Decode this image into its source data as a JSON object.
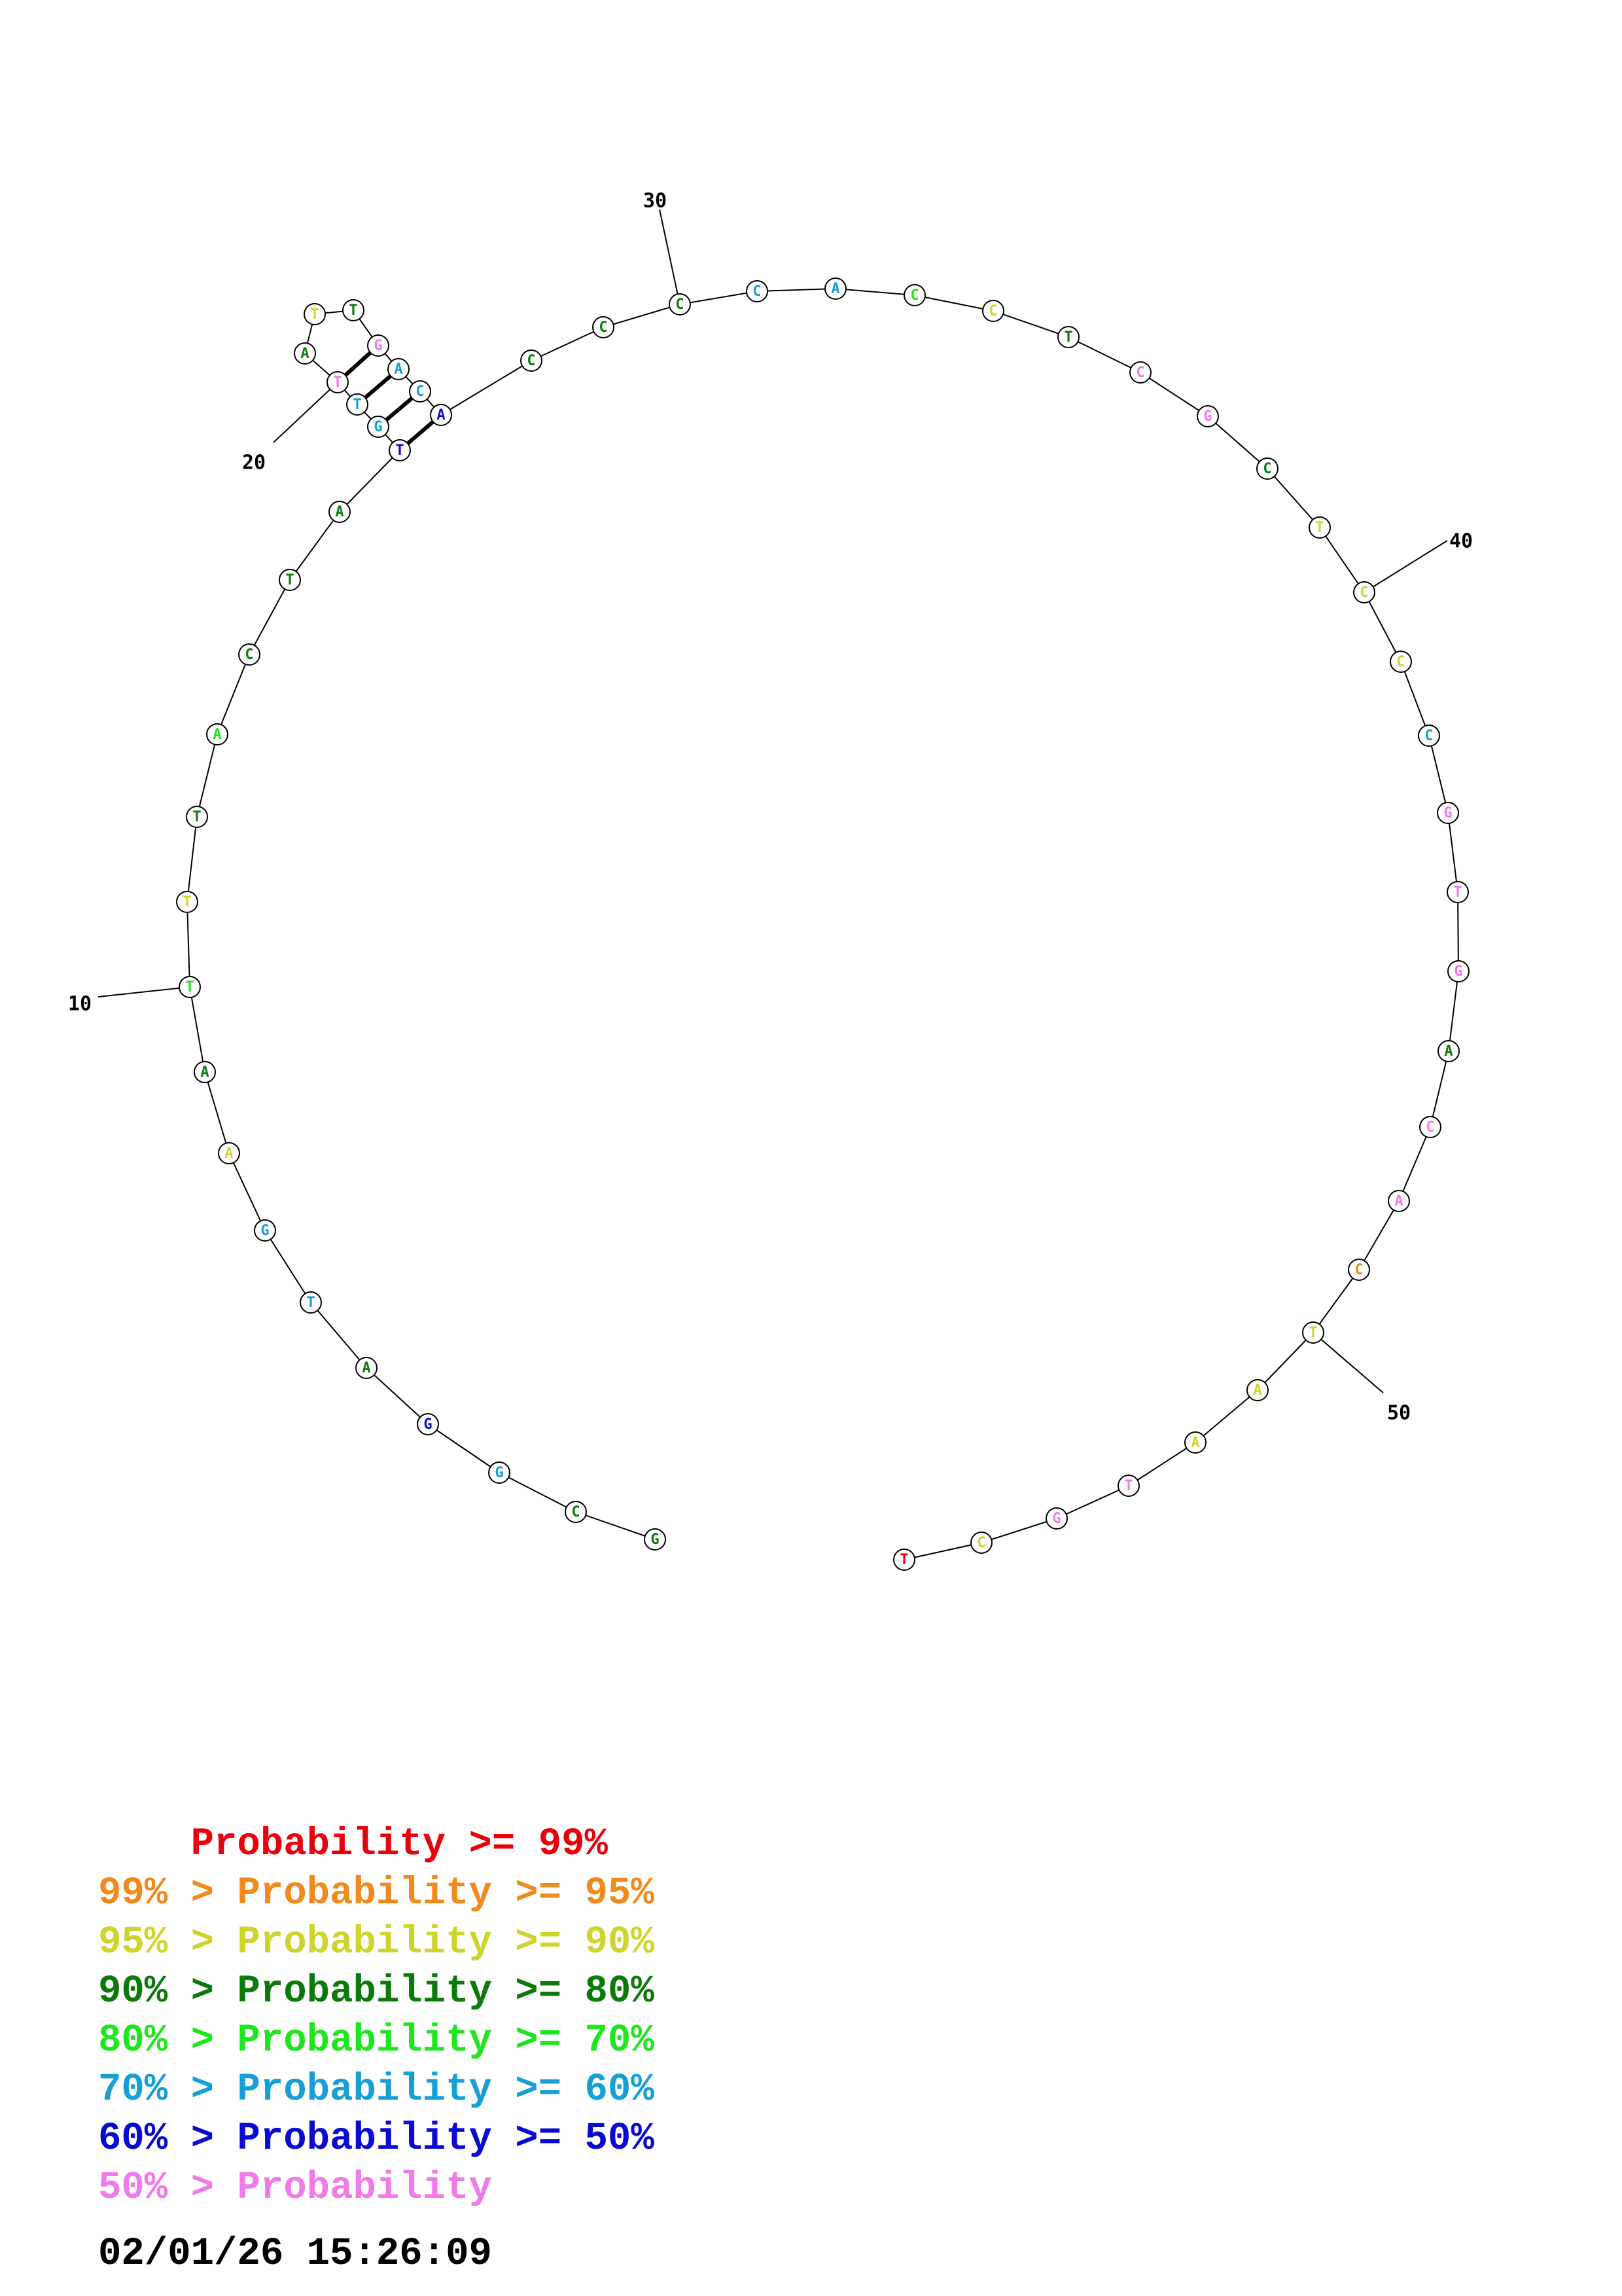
{
  "colors": {
    "red": "#e8000b",
    "orange": "#f08a1c",
    "yellow": "#cfd42c",
    "darkgreen": "#0b7a0b",
    "green": "#1ee61e",
    "cyan": "#169fd6",
    "blue": "#0a0ad2",
    "pink": "#f07ae8"
  },
  "sequence": [
    {
      "n": 1,
      "base": "G",
      "c": "darkgreen"
    },
    {
      "n": 2,
      "base": "C",
      "c": "darkgreen"
    },
    {
      "n": 3,
      "base": "G",
      "c": "cyan"
    },
    {
      "n": 4,
      "base": "G",
      "c": "blue"
    },
    {
      "n": 5,
      "base": "A",
      "c": "darkgreen"
    },
    {
      "n": 6,
      "base": "T",
      "c": "cyan"
    },
    {
      "n": 7,
      "base": "G",
      "c": "cyan"
    },
    {
      "n": 8,
      "base": "A",
      "c": "yellow"
    },
    {
      "n": 9,
      "base": "A",
      "c": "darkgreen"
    },
    {
      "n": 10,
      "base": "T",
      "c": "green"
    },
    {
      "n": 11,
      "base": "T",
      "c": "yellow"
    },
    {
      "n": 12,
      "base": "T",
      "c": "darkgreen"
    },
    {
      "n": 13,
      "base": "A",
      "c": "green"
    },
    {
      "n": 14,
      "base": "C",
      "c": "darkgreen"
    },
    {
      "n": 15,
      "base": "T",
      "c": "darkgreen"
    },
    {
      "n": 16,
      "base": "A",
      "c": "darkgreen"
    },
    {
      "n": 17,
      "base": "T",
      "c": "blue"
    },
    {
      "n": 18,
      "base": "G",
      "c": "cyan"
    },
    {
      "n": 19,
      "base": "T",
      "c": "cyan"
    },
    {
      "n": 20,
      "base": "T",
      "c": "pink"
    },
    {
      "n": 21,
      "base": "A",
      "c": "darkgreen"
    },
    {
      "n": 22,
      "base": "T",
      "c": "yellow"
    },
    {
      "n": 23,
      "base": "T",
      "c": "darkgreen"
    },
    {
      "n": 24,
      "base": "G",
      "c": "pink"
    },
    {
      "n": 25,
      "base": "A",
      "c": "cyan"
    },
    {
      "n": 26,
      "base": "C",
      "c": "cyan"
    },
    {
      "n": 27,
      "base": "A",
      "c": "blue"
    },
    {
      "n": 28,
      "base": "C",
      "c": "darkgreen"
    },
    {
      "n": 29,
      "base": "C",
      "c": "darkgreen"
    },
    {
      "n": 30,
      "base": "C",
      "c": "darkgreen"
    },
    {
      "n": 31,
      "base": "C",
      "c": "cyan"
    },
    {
      "n": 32,
      "base": "A",
      "c": "cyan"
    },
    {
      "n": 33,
      "base": "C",
      "c": "green"
    },
    {
      "n": 34,
      "base": "C",
      "c": "yellow"
    },
    {
      "n": 35,
      "base": "T",
      "c": "darkgreen"
    },
    {
      "n": 36,
      "base": "C",
      "c": "pink"
    },
    {
      "n": 37,
      "base": "G",
      "c": "pink"
    },
    {
      "n": 38,
      "base": "C",
      "c": "darkgreen"
    },
    {
      "n": 39,
      "base": "T",
      "c": "yellow"
    },
    {
      "n": 40,
      "base": "C",
      "c": "yellow"
    },
    {
      "n": 41,
      "base": "C",
      "c": "yellow"
    },
    {
      "n": 42,
      "base": "C",
      "c": "cyan"
    },
    {
      "n": 43,
      "base": "G",
      "c": "pink"
    },
    {
      "n": 44,
      "base": "T",
      "c": "pink"
    },
    {
      "n": 45,
      "base": "G",
      "c": "pink"
    },
    {
      "n": 46,
      "base": "A",
      "c": "darkgreen"
    },
    {
      "n": 47,
      "base": "C",
      "c": "pink"
    },
    {
      "n": 48,
      "base": "A",
      "c": "pink"
    },
    {
      "n": 49,
      "base": "C",
      "c": "orange"
    },
    {
      "n": 50,
      "base": "T",
      "c": "yellow"
    },
    {
      "n": 51,
      "base": "A",
      "c": "yellow"
    },
    {
      "n": 52,
      "base": "A",
      "c": "yellow"
    },
    {
      "n": 53,
      "base": "T",
      "c": "pink"
    },
    {
      "n": 54,
      "base": "G",
      "c": "pink"
    },
    {
      "n": 55,
      "base": "C",
      "c": "yellow"
    },
    {
      "n": 56,
      "base": "T",
      "c": "red"
    }
  ],
  "pairs": [
    [
      17,
      27
    ],
    [
      18,
      26
    ],
    [
      19,
      25
    ],
    [
      20,
      24
    ]
  ],
  "position_labels": [
    "10",
    "20",
    "30",
    "40",
    "50"
  ],
  "legend": [
    {
      "prefix": "    ",
      "text": "    Probability >= 99%",
      "color": "red"
    },
    {
      "prefix": "",
      "text": "99% > Probability >= 95%",
      "color": "orange"
    },
    {
      "prefix": "",
      "text": "95% > Probability >= 90%",
      "color": "yellow"
    },
    {
      "prefix": "",
      "text": "90% > Probability >= 80%",
      "color": "darkgreen"
    },
    {
      "prefix": "",
      "text": "80% > Probability >= 70%",
      "color": "green"
    },
    {
      "prefix": "",
      "text": "70% > Probability >= 60%",
      "color": "cyan"
    },
    {
      "prefix": "",
      "text": "60% > Probability >= 50%",
      "color": "blue"
    },
    {
      "prefix": "",
      "text": "50% > Probability",
      "color": "pink"
    }
  ],
  "timestamp": "02/01/26 15:26:09"
}
